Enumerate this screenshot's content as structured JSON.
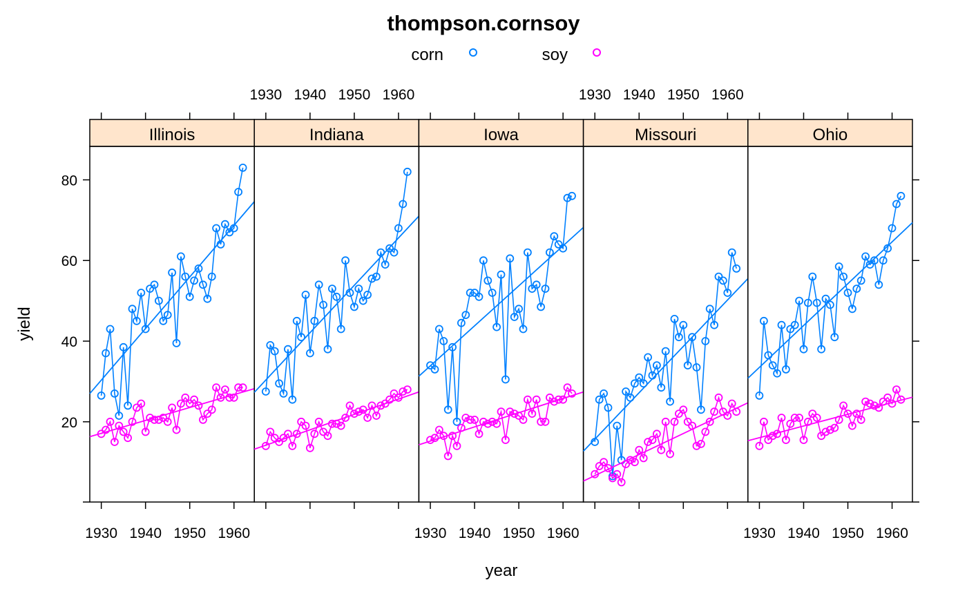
{
  "chart_data": {
    "type": "line",
    "title": "thompson.cornsoy",
    "xlabel": "year",
    "ylabel": "yield",
    "xlim": [
      1927.4,
      1964.6
    ],
    "ylim": [
      0.1,
      88.3
    ],
    "x_ticks": [
      1930,
      1940,
      1950,
      1960
    ],
    "y_ticks": [
      20,
      40,
      60,
      80
    ],
    "x_tick_labels": [
      "1930",
      "1940",
      "1950",
      "1960"
    ],
    "y_tick_labels": [
      "20",
      "40",
      "60",
      "80"
    ],
    "grid": false,
    "legend_position": "top",
    "layout": "1 row x 5 panels, points joined by lines with least-squares fit line per series",
    "legend": [
      {
        "name": "corn",
        "color": "#0080ff"
      },
      {
        "name": "soy",
        "color": "#ff00ff"
      }
    ],
    "colors": {
      "corn": "#0080ff",
      "soy": "#ff00ff",
      "strip": "#ffe5cc"
    },
    "panels": [
      {
        "label": "Illinois",
        "series": [
          {
            "name": "corn",
            "x_start": 1930,
            "values": [
              26.5,
              37,
              43,
              27,
              21.5,
              38.5,
              24,
              48,
              45,
              52,
              43,
              53,
              54,
              50,
              45,
              46.5,
              57,
              39.5,
              61,
              56,
              51,
              55,
              58,
              54,
              50.5,
              56,
              68,
              64,
              69,
              67,
              68,
              77,
              83
            ],
            "fit": [
              27.0,
              74.6
            ]
          },
          {
            "name": "soy",
            "x_start": 1930,
            "values": [
              17,
              18,
              20,
              15,
              19,
              17.5,
              16,
              20,
              23.5,
              24.5,
              17.5,
              21,
              20.5,
              20.5,
              21,
              20,
              23.5,
              18,
              24.5,
              26,
              24.5,
              25.5,
              24,
              20.5,
              22,
              23,
              28.5,
              26,
              28,
              26,
              26,
              28.5,
              28.5
            ],
            "fit": [
              16.3,
              28.2
            ]
          }
        ]
      },
      {
        "label": "Indiana",
        "series": [
          {
            "name": "corn",
            "x_start": 1930,
            "values": [
              27.5,
              39,
              37.5,
              29.5,
              27,
              38,
              25.5,
              45,
              41,
              51.5,
              37,
              45,
              54,
              49,
              38,
              53,
              51,
              43,
              60,
              52,
              48.5,
              53,
              50,
              51.5,
              55.5,
              56,
              62,
              59,
              63,
              62,
              68,
              74,
              82
            ],
            "fit": [
              27.3,
              71.0
            ]
          },
          {
            "name": "soy",
            "x_start": 1930,
            "values": [
              14,
              17.5,
              16,
              15,
              16,
              17,
              14,
              17,
              20,
              19,
              13.5,
              17,
              20,
              17.5,
              16.5,
              19.5,
              19.5,
              19,
              21,
              24,
              22,
              22.5,
              23,
              21,
              24,
              21.5,
              24,
              24.5,
              25.5,
              27,
              26,
              27.5,
              28
            ],
            "fit": [
              13.2,
              27.4
            ]
          }
        ]
      },
      {
        "label": "Iowa",
        "series": [
          {
            "name": "corn",
            "x_start": 1930,
            "values": [
              34,
              33,
              43,
              40,
              23,
              38.5,
              20,
              44.5,
              46.5,
              52,
              52,
              51,
              60,
              55,
              52,
              43.5,
              56.5,
              30.5,
              60.5,
              46,
              48,
              43,
              62,
              53,
              54,
              48.5,
              53,
              62,
              66,
              64,
              63,
              75.5,
              76
            ],
            "fit": [
              31.3,
              68.2
            ]
          },
          {
            "name": "soy",
            "x_start": 1930,
            "values": [
              15.5,
              16,
              18,
              16.5,
              11.5,
              16.5,
              14,
              18.5,
              21,
              20.5,
              20.5,
              17,
              20,
              19.5,
              20,
              19.5,
              22.5,
              15.5,
              22.5,
              22,
              21.5,
              20.5,
              25.5,
              22,
              25.5,
              20,
              20,
              26,
              25,
              25.5,
              25.5,
              28.5,
              27
            ],
            "fit": [
              14.3,
              27.4
            ]
          }
        ]
      },
      {
        "label": "Missouri",
        "series": [
          {
            "name": "corn",
            "x_start": 1930,
            "values": [
              15,
              25.5,
              27,
              23.5,
              6.5,
              19,
              10.5,
              27.5,
              26,
              29.5,
              31,
              29.5,
              36,
              31.5,
              34,
              28.5,
              37.5,
              25,
              45.5,
              41,
              44,
              34,
              41,
              33.5,
              23,
              40,
              48,
              44,
              56,
              55,
              52,
              62,
              58
            ],
            "fit": [
              12.7,
              55.5
            ]
          },
          {
            "name": "soy",
            "x_start": 1930,
            "values": [
              7,
              9,
              10,
              8.5,
              6,
              7,
              5,
              9.5,
              10.5,
              10,
              13,
              11,
              15,
              15.5,
              17,
              13,
              20,
              12,
              20,
              22,
              23,
              20,
              19,
              14,
              14.5,
              17.5,
              20,
              22.5,
              26,
              22.5,
              21.5,
              24.5,
              22.5
            ],
            "fit": [
              5.3,
              24.7
            ]
          }
        ]
      },
      {
        "label": "Ohio",
        "series": [
          {
            "name": "corn",
            "x_start": 1930,
            "values": [
              26.5,
              45,
              36.5,
              34,
              32,
              44,
              33,
              43,
              44,
              50,
              38,
              49.5,
              56,
              49.5,
              38,
              50.5,
              49,
              41,
              58.5,
              56,
              52,
              48,
              53,
              55,
              61,
              59,
              60,
              54,
              60,
              63,
              68,
              74,
              76
            ],
            "fit": [
              30.8,
              69.4
            ]
          },
          {
            "name": "soy",
            "x_start": 1930,
            "values": [
              14,
              20,
              15.5,
              16.5,
              17,
              21,
              15.5,
              19.5,
              21,
              21,
              15.5,
              20,
              22,
              21,
              16.5,
              17.5,
              18,
              18.5,
              20.5,
              24,
              22,
              19,
              22,
              20.5,
              25,
              24.5,
              24,
              23.5,
              25,
              26,
              24.5,
              28,
              25.5
            ],
            "fit": [
              15.3,
              26.1
            ]
          }
        ]
      }
    ]
  }
}
